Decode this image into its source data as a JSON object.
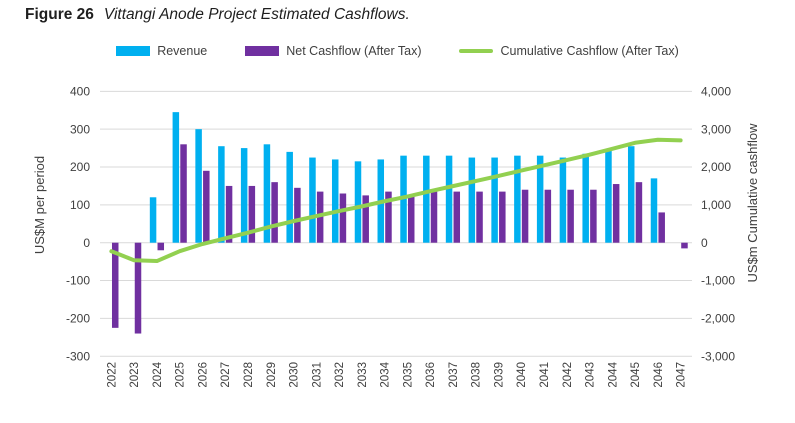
{
  "figure": {
    "label": "Figure 26",
    "title": "Vittangi Anode Project Estimated Cashflows."
  },
  "chart_data": {
    "type": "combo bar+line",
    "categories": [
      2022,
      2023,
      2024,
      2025,
      2026,
      2027,
      2028,
      2029,
      2030,
      2031,
      2032,
      2033,
      2034,
      2035,
      2036,
      2037,
      2038,
      2039,
      2040,
      2041,
      2042,
      2043,
      2044,
      2045,
      2046,
      2047
    ],
    "series": [
      {
        "name": "Revenue",
        "type": "bar",
        "axis": "left",
        "color": "#00B0F0",
        "values": [
          null,
          null,
          120,
          345,
          300,
          255,
          250,
          260,
          240,
          225,
          220,
          215,
          220,
          230,
          230,
          230,
          225,
          225,
          230,
          230,
          225,
          235,
          245,
          255,
          170,
          null
        ]
      },
      {
        "name": "Net Cashflow (After Tax)",
        "type": "bar",
        "axis": "left",
        "color": "#7030A0",
        "values": [
          -225,
          -240,
          -20,
          260,
          190,
          150,
          150,
          160,
          145,
          135,
          130,
          125,
          135,
          125,
          140,
          135,
          135,
          135,
          140,
          140,
          140,
          140,
          155,
          160,
          80,
          -15
        ]
      },
      {
        "name": "Cumulative Cashflow (After Tax)",
        "type": "line",
        "axis": "right",
        "color": "#92D050",
        "values": [
          -225,
          -465,
          -485,
          -225,
          -35,
          115,
          265,
          425,
          570,
          705,
          835,
          960,
          1095,
          1220,
          1360,
          1495,
          1630,
          1765,
          1905,
          2045,
          2185,
          2325,
          2480,
          2640,
          2720,
          2705
        ]
      }
    ],
    "left_axis": {
      "title": "US$M per period",
      "min": -300,
      "max": 400,
      "step": 100,
      "tick_labels": [
        "400",
        "300",
        "200",
        "100",
        "0",
        "-100",
        "-200",
        "-300"
      ]
    },
    "right_axis": {
      "title": "US$m Cumulative cashflow",
      "min": -3000,
      "max": 4000,
      "step": 1000,
      "tick_labels": [
        "4,000",
        "3,000",
        "2,000",
        "1,000",
        "0",
        "-1,000",
        "-2,000",
        "-3,000"
      ]
    },
    "grid": true,
    "gridline_color": "#D9D9D9",
    "legend_position": "top"
  }
}
